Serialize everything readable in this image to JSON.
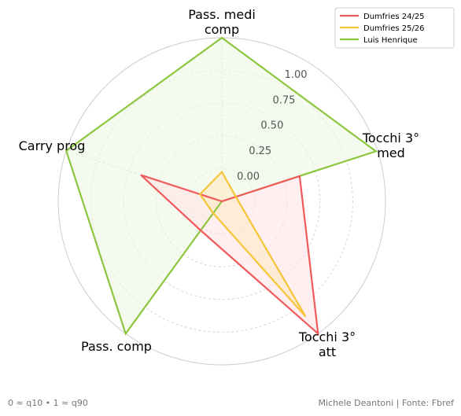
{
  "chart_data": {
    "type": "radar",
    "axes": [
      "Pass. medi\ncomp",
      "Tocchi 3°\nmed",
      "Tocchi 3°\natt",
      "Pass. comp",
      "Carry prog"
    ],
    "rlim": [
      0,
      1
    ],
    "r_ticks": [
      "0.00",
      "0.25",
      "0.50",
      "0.75",
      "1.00"
    ],
    "r_tick_values": [
      0,
      0.25,
      0.5,
      0.75,
      1.0
    ],
    "grid": true,
    "legend_position": "top-right",
    "series": [
      {
        "name": "Dumfries 24/25",
        "color": "#f05a5a",
        "fill": "#ffe4e6",
        "values": [
          0.0,
          0.5,
          1.0,
          0.22,
          0.52
        ]
      },
      {
        "name": "Dumfries 25/26",
        "color": "#f5c535",
        "fill": "#ffe9c4",
        "values": [
          0.18,
          0.09,
          0.87,
          0.09,
          0.14
        ]
      },
      {
        "name": "Luis Henrique",
        "color": "#8cc63f",
        "fill": "#eef6e4",
        "values": [
          1.0,
          0.99,
          0.0,
          1.0,
          1.0
        ]
      }
    ]
  },
  "footer": {
    "left_note": "0 ≈ q10  •  1 ≈ q90",
    "credit": "Michele Deantoni | Fonte: Fbref"
  }
}
